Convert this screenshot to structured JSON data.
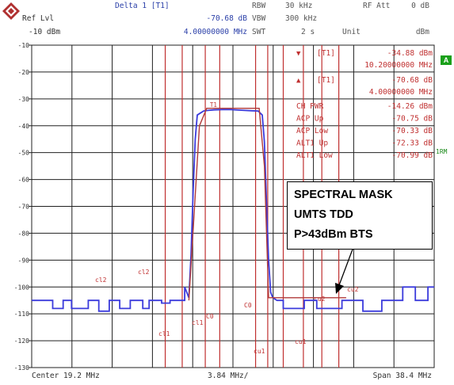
{
  "header": {
    "delta_label": "Delta 1 [T1]",
    "delta_level": "-70.68 dB",
    "delta_freq": "4.00000000 MHz",
    "ref_label": "Ref Lvl",
    "ref_value": "-10 dBm",
    "rbw_label": "RBW",
    "rbw_value": "30 kHz",
    "vbw_label": "VBW",
    "vbw_value": "300 kHz",
    "swt_label": "SWT",
    "swt_value": "2 s",
    "rfatt_label": "RF Att",
    "rfatt_value": "0 dB",
    "unit_label": "Unit",
    "unit_value": "dBm"
  },
  "markers": [
    {
      "symbol": "▼",
      "label": "[T1]",
      "value": "-34.88 dBm",
      "sub": "10.20000000 MHz"
    },
    {
      "symbol": "▲",
      "label": "[T1]",
      "value": "-70.68 dB",
      "sub": "4.00000000 MHz"
    }
  ],
  "power": [
    {
      "label": "CH PWR",
      "value": "-14.26 dBm"
    },
    {
      "label": "ACP Up",
      "value": "-70.75 dB"
    },
    {
      "label": "ACP Low",
      "value": "-70.33 dB"
    },
    {
      "label": "ALT1 Up",
      "value": "-72.33 dB"
    },
    {
      "label": "ALT1 Low",
      "value": "-70.99 dB"
    }
  ],
  "side": {
    "badge": "A",
    "trace": "1RM"
  },
  "callout": {
    "line1": "SPECTRAL MASK",
    "line2": "UMTS TDD",
    "line3": "P>43dBm BTS"
  },
  "chart_data": {
    "type": "line",
    "xlabel": "Center 19.2 MHz",
    "div_label": "3.84 MHz/",
    "span_label": "Span 38.4 MHz",
    "center_mhz": 19.2,
    "span_mhz": 38.4,
    "xlim": [
      0,
      38.4
    ],
    "ylim": [
      -130,
      -10
    ],
    "y_ticks": [
      -10,
      -20,
      -30,
      -40,
      -50,
      -60,
      -70,
      -80,
      -90,
      -100,
      -110,
      -120,
      -130
    ],
    "grid": true,
    "channel_labels": [
      "cl2",
      "cl2",
      "cl1",
      "cl1",
      "C0",
      "C0",
      "cu1",
      "cu1",
      "cu2",
      "cu2"
    ],
    "series": [
      {
        "color": "#3b3bdc",
        "x": [
          0.0,
          2.0,
          2.0,
          3.0,
          3.0,
          3.8,
          3.8,
          5.4,
          5.4,
          6.4,
          6.4,
          7.4,
          7.4,
          8.4,
          8.4,
          9.4,
          9.4,
          10.6,
          10.6,
          11.2,
          11.2,
          12.4,
          12.4,
          13.2,
          13.2,
          14.6,
          14.6,
          15.0,
          15.2,
          15.4,
          15.6,
          15.8,
          16.4,
          16.8,
          17.4,
          18.2,
          19.0,
          20.0,
          21.0,
          21.6,
          22.0,
          22.2,
          22.4,
          22.6,
          22.8,
          23.0,
          23.4,
          24.0,
          24.0,
          26.0,
          26.0,
          27.2,
          27.2,
          29.6,
          29.6,
          31.6,
          31.6,
          33.4,
          33.4,
          35.4,
          35.4,
          36.6,
          36.6,
          37.8,
          37.8,
          38.4
        ],
        "y": [
          -105,
          -105,
          -108,
          -108,
          -105,
          -105,
          -108,
          -108,
          -105,
          -105,
          -109,
          -109,
          -105,
          -105,
          -108,
          -108,
          -105,
          -105,
          -108,
          -108,
          -105,
          -105,
          -106,
          -106,
          -105,
          -105,
          -100,
          -104,
          -88,
          -65,
          -45,
          -36,
          -34.5,
          -34.3,
          -34.1,
          -34.0,
          -34.0,
          -34.2,
          -34.4,
          -34.5,
          -36,
          -46,
          -68,
          -90,
          -102,
          -104,
          -105,
          -105,
          -108,
          -108,
          -105,
          -105,
          -108,
          -108,
          -105,
          -105,
          -109,
          -109,
          -105,
          -105,
          -100,
          -100,
          -105,
          -105,
          -100,
          -100
        ]
      },
      {
        "color": "#b03a3a",
        "x": [
          15.0,
          16.0,
          16.7,
          17.0,
          18.0,
          19.0,
          20.0,
          21.0,
          21.7,
          22.2,
          22.6,
          24.0,
          26.0,
          28.0,
          30.0
        ],
        "y": [
          -105,
          -40,
          -33.5,
          -33.5,
          -33.5,
          -33.5,
          -33.5,
          -33.5,
          -33.5,
          -55,
          -104,
          -104,
          -104,
          -104,
          -104
        ]
      }
    ]
  }
}
